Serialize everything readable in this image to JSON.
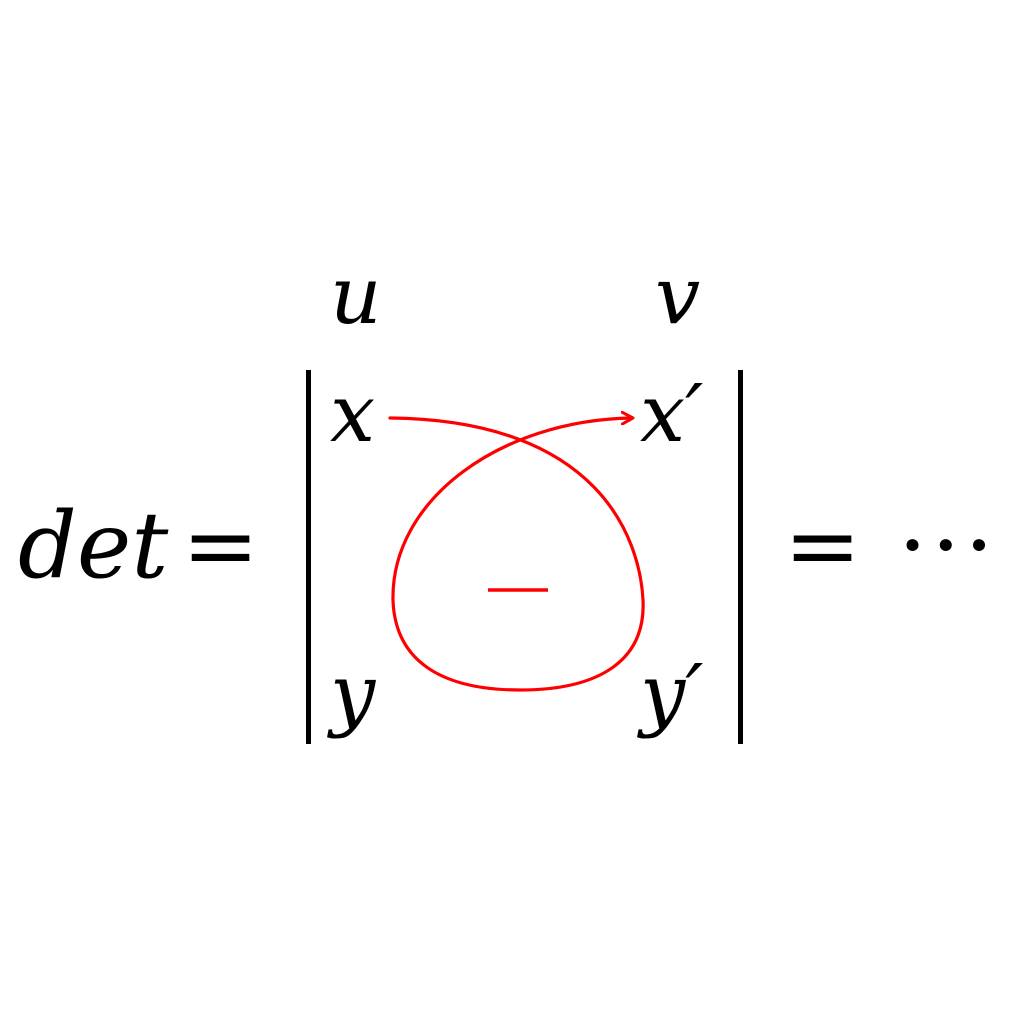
{
  "formula": {
    "lhs": "det",
    "equals_left": "=",
    "equals_right": "=",
    "ellipsis": "···"
  },
  "matrix": {
    "column_labels": [
      "u",
      "v"
    ],
    "cells": {
      "top_left": "x",
      "top_right": "x′",
      "bottom_left": "y",
      "bottom_right": "y′"
    }
  },
  "annotation": {
    "sign": "−",
    "color": "#ff0000"
  }
}
